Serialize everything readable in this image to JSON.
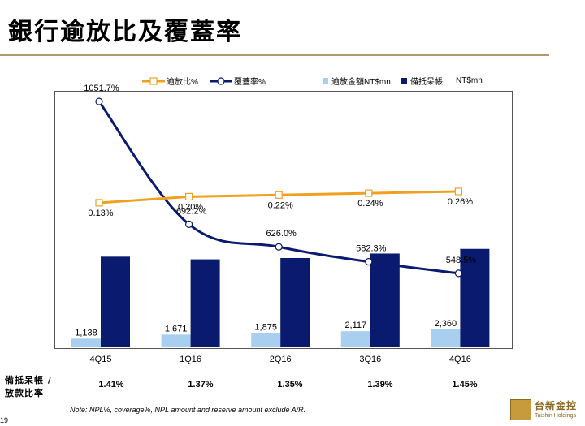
{
  "page": {
    "title": "銀行逾放比及覆蓋率",
    "note": "Note: NPL%, coverage%, NPL amount and reserve amount exclude A/R.",
    "page_number": "19",
    "logo": {
      "name": "台新金控",
      "sub": "Taishin Holdings",
      "color": "#c79a3c"
    }
  },
  "legend": {
    "npl_ratio": "逾放比%",
    "coverage": "覆蓋率%",
    "npl_amount": "逾放金額NT$mn",
    "reserve": "備抵呆帳",
    "reserve_unit": "NT$mn"
  },
  "ratio_row": {
    "label_line1": "備抵呆帳 /",
    "label_line2": "放款比率",
    "values": [
      "1.41%",
      "1.37%",
      "1.35%",
      "1.39%",
      "1.45%"
    ]
  },
  "chart_data": {
    "type": "bar",
    "categories": [
      "4Q15",
      "1Q16",
      "2Q16",
      "3Q16",
      "4Q16"
    ],
    "series": [
      {
        "name": "逾放金額NT$mn",
        "kind": "bar",
        "color": "#a8cef0",
        "values": [
          1138,
          1671,
          1875,
          2117,
          2360
        ],
        "labels": [
          "1,138",
          "1,671",
          "1,875",
          "2,117",
          "2,360"
        ]
      },
      {
        "name": "備抵呆帳 NT$mn",
        "kind": "bar",
        "color": "#0a1a6e",
        "values": [
          11920,
          11570,
          11740,
          12330,
          12940
        ],
        "labels": []
      },
      {
        "name": "覆蓋率%",
        "kind": "line",
        "color": "#0a1a6e",
        "values": [
          1051.7,
          692.2,
          626.0,
          582.3,
          548.5
        ],
        "labels": [
          "1051.7%",
          "692.2%",
          "626.0%",
          "582.3%",
          "548.5%"
        ]
      },
      {
        "name": "逾放比%",
        "kind": "line",
        "color": "#f0a020",
        "values": [
          0.13,
          0.2,
          0.22,
          0.24,
          0.26
        ],
        "labels": [
          "0.13%",
          "0.20%",
          "0.22%",
          "0.24%",
          "0.26%"
        ]
      }
    ],
    "grid": false,
    "legend_position": "top"
  }
}
